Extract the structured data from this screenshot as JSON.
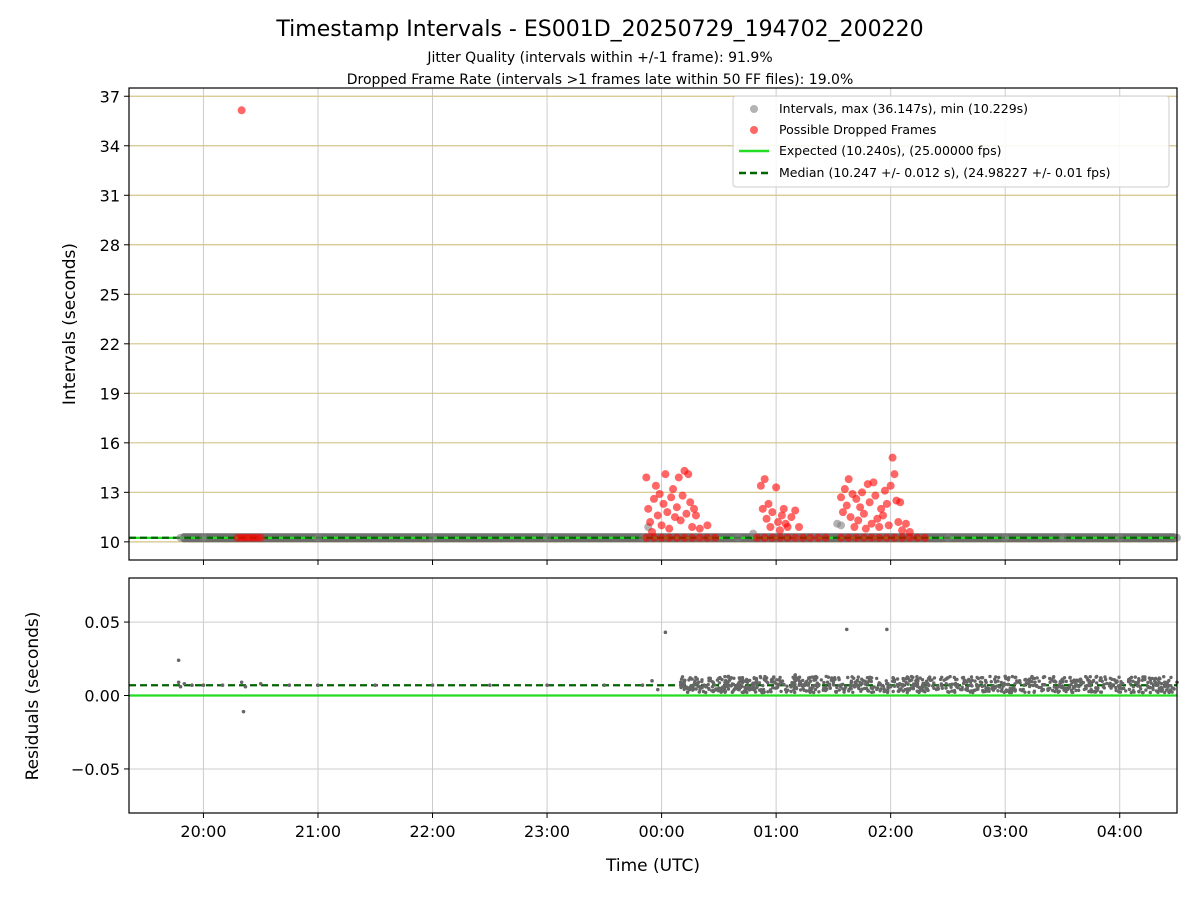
{
  "chart_data": [
    {
      "type": "scatter",
      "title": "Timestamp Intervals - ES001D_20250729_194702_200220",
      "subtitle": [
        "Jitter Quality (intervals within +/-1 frame): 91.9%",
        "Dropped Frame Rate (intervals >1 frames late within 50 FF files): 19.0%"
      ],
      "xlabel": "",
      "ylabel": "Intervals (seconds)",
      "xlim": [
        "19:21",
        "04:30"
      ],
      "ylim": [
        8.9,
        37.5
      ],
      "y_ticks": [
        10,
        13,
        16,
        19,
        22,
        25,
        28,
        31,
        34,
        37
      ],
      "grid": true,
      "legend_position": "top-right",
      "legend": [
        "Intervals, max (36.147s), min (10.229s)",
        "Possible Dropped Frames",
        "Expected (10.240s), (25.00000 fps)",
        "Median (10.247 +/- 0.012 s), (24.98227 +/- 0.01 fps)"
      ],
      "expected_value": 10.24,
      "median_value": 10.247,
      "series": [
        {
          "name": "Intervals, max (36.147s), min (10.229s)",
          "color": "#808080",
          "points": [
            [
              "19:48",
              10.25
            ],
            [
              "20:00",
              10.25
            ],
            [
              "20:30",
              10.25
            ],
            [
              "21:00",
              10.25
            ],
            [
              "22:00",
              10.25
            ],
            [
              "23:00",
              10.25
            ],
            [
              "23:50",
              10.25
            ],
            [
              "23:53",
              10.9
            ],
            [
              "00:20",
              10.25
            ],
            [
              "00:40",
              10.25
            ],
            [
              "00:48",
              10.5
            ],
            [
              "01:10",
              10.25
            ],
            [
              "01:20",
              10.25
            ],
            [
              "01:32",
              11.1
            ],
            [
              "01:34",
              11.0
            ],
            [
              "02:10",
              10.25
            ],
            [
              "02:30",
              10.25
            ],
            [
              "03:00",
              10.25
            ],
            [
              "03:30",
              10.25
            ],
            [
              "04:00",
              10.25
            ],
            [
              "04:30",
              10.25
            ]
          ]
        },
        {
          "name": "Possible Dropped Frames",
          "color": "#ff0000",
          "points": [
            [
              "20:20",
              36.15
            ],
            [
              "20:18",
              10.25
            ],
            [
              "20:20",
              10.25
            ],
            [
              "20:22",
              10.25
            ],
            [
              "20:24",
              10.25
            ],
            [
              "20:26",
              10.25
            ],
            [
              "20:28",
              10.25
            ],
            [
              "20:30",
              10.25
            ],
            [
              "23:52",
              13.9
            ],
            [
              "23:53",
              12.0
            ],
            [
              "23:54",
              11.2
            ],
            [
              "23:55",
              10.6
            ],
            [
              "23:56",
              12.6
            ],
            [
              "23:57",
              13.4
            ],
            [
              "23:58",
              11.6
            ],
            [
              "23:59",
              12.9
            ],
            [
              "00:00",
              11.0
            ],
            [
              "00:01",
              12.3
            ],
            [
              "00:02",
              14.1
            ],
            [
              "00:03",
              11.8
            ],
            [
              "00:04",
              10.8
            ],
            [
              "00:05",
              12.7
            ],
            [
              "00:06",
              13.2
            ],
            [
              "00:07",
              11.5
            ],
            [
              "00:08",
              12.1
            ],
            [
              "00:09",
              13.9
            ],
            [
              "00:10",
              11.3
            ],
            [
              "00:11",
              12.8
            ],
            [
              "00:12",
              14.3
            ],
            [
              "00:13",
              11.7
            ],
            [
              "00:14",
              14.1
            ],
            [
              "00:15",
              12.4
            ],
            [
              "00:16",
              10.9
            ],
            [
              "00:17",
              12.0
            ],
            [
              "00:18",
              11.6
            ],
            [
              "00:20",
              10.8
            ],
            [
              "00:24",
              11.0
            ],
            [
              "23:52",
              10.25
            ],
            [
              "23:56",
              10.25
            ],
            [
              "00:00",
              10.25
            ],
            [
              "00:04",
              10.25
            ],
            [
              "00:08",
              10.25
            ],
            [
              "00:12",
              10.25
            ],
            [
              "00:16",
              10.25
            ],
            [
              "00:20",
              10.25
            ],
            [
              "00:24",
              10.25
            ],
            [
              "00:28",
              10.25
            ],
            [
              "00:52",
              13.4
            ],
            [
              "00:53",
              12.0
            ],
            [
              "00:54",
              13.8
            ],
            [
              "00:55",
              11.4
            ],
            [
              "00:56",
              12.3
            ],
            [
              "00:57",
              10.9
            ],
            [
              "00:58",
              11.8
            ],
            [
              "01:00",
              13.3
            ],
            [
              "01:01",
              11.2
            ],
            [
              "01:02",
              10.7
            ],
            [
              "01:03",
              11.6
            ],
            [
              "01:04",
              12.0
            ],
            [
              "01:05",
              11.1
            ],
            [
              "01:06",
              10.9
            ],
            [
              "01:08",
              11.5
            ],
            [
              "01:10",
              11.9
            ],
            [
              "01:12",
              10.9
            ],
            [
              "00:50",
              10.25
            ],
            [
              "00:54",
              10.25
            ],
            [
              "00:58",
              10.25
            ],
            [
              "01:02",
              10.25
            ],
            [
              "01:06",
              10.25
            ],
            [
              "01:10",
              10.25
            ],
            [
              "01:14",
              10.25
            ],
            [
              "01:18",
              10.25
            ],
            [
              "01:22",
              10.25
            ],
            [
              "01:26",
              10.25
            ],
            [
              "01:34",
              12.7
            ],
            [
              "01:35",
              11.8
            ],
            [
              "01:36",
              13.2
            ],
            [
              "01:37",
              12.2
            ],
            [
              "01:38",
              13.8
            ],
            [
              "01:39",
              11.5
            ],
            [
              "01:40",
              12.9
            ],
            [
              "01:41",
              10.9
            ],
            [
              "01:42",
              12.6
            ],
            [
              "01:43",
              11.3
            ],
            [
              "01:44",
              12.1
            ],
            [
              "01:45",
              13.0
            ],
            [
              "01:46",
              11.7
            ],
            [
              "01:47",
              10.8
            ],
            [
              "01:48",
              13.5
            ],
            [
              "01:49",
              12.4
            ],
            [
              "01:50",
              11.1
            ],
            [
              "01:51",
              13.6
            ],
            [
              "01:52",
              12.8
            ],
            [
              "01:53",
              11.4
            ],
            [
              "01:54",
              10.9
            ],
            [
              "01:55",
              12.0
            ],
            [
              "01:56",
              11.6
            ],
            [
              "01:57",
              13.1
            ],
            [
              "01:58",
              12.3
            ],
            [
              "01:59",
              11.0
            ],
            [
              "02:00",
              13.4
            ],
            [
              "02:01",
              15.1
            ],
            [
              "02:02",
              14.1
            ],
            [
              "02:03",
              12.5
            ],
            [
              "02:04",
              11.2
            ],
            [
              "02:05",
              12.4
            ],
            [
              "02:06",
              10.7
            ],
            [
              "02:08",
              11.1
            ],
            [
              "02:10",
              10.6
            ],
            [
              "01:34",
              10.25
            ],
            [
              "01:38",
              10.25
            ],
            [
              "01:42",
              10.25
            ],
            [
              "01:46",
              10.25
            ],
            [
              "01:50",
              10.25
            ],
            [
              "01:54",
              10.25
            ],
            [
              "01:58",
              10.25
            ],
            [
              "02:02",
              10.25
            ],
            [
              "02:06",
              10.25
            ],
            [
              "02:10",
              10.25
            ],
            [
              "02:14",
              10.25
            ],
            [
              "02:18",
              10.25
            ]
          ]
        }
      ]
    },
    {
      "type": "scatter",
      "xlabel": "Time (UTC)",
      "ylabel": "Residuals (seconds)",
      "xlim": [
        "19:21",
        "04:30"
      ],
      "ylim": [
        -0.08,
        0.08
      ],
      "y_ticks": [
        -0.05,
        0.0,
        0.05
      ],
      "y_tick_labels": [
        "−0.05",
        "0.00",
        "0.05"
      ],
      "x_ticks": [
        "20:00",
        "21:00",
        "22:00",
        "23:00",
        "00:00",
        "01:00",
        "02:00",
        "03:00",
        "04:00"
      ],
      "grid": true,
      "expected_value": 0.0,
      "median_value": 0.007,
      "series": [
        {
          "name": "Residuals",
          "color": "#666666",
          "points": [
            [
              "19:47",
              0.024
            ],
            [
              "19:47",
              0.009
            ],
            [
              "19:48",
              0.006
            ],
            [
              "19:50",
              0.008
            ],
            [
              "19:54",
              0.007
            ],
            [
              "20:00",
              0.007
            ],
            [
              "20:10",
              0.007
            ],
            [
              "20:20",
              0.009
            ],
            [
              "20:21",
              -0.011
            ],
            [
              "20:22",
              0.006
            ],
            [
              "20:30",
              0.008
            ],
            [
              "20:45",
              0.007
            ],
            [
              "21:00",
              0.007
            ],
            [
              "21:30",
              0.007
            ],
            [
              "22:00",
              0.007
            ],
            [
              "22:30",
              0.007
            ],
            [
              "23:00",
              0.007
            ],
            [
              "23:30",
              0.007
            ],
            [
              "23:50",
              0.007
            ],
            [
              "23:55",
              0.01
            ],
            [
              "23:58",
              0.004
            ],
            [
              "00:02",
              0.043
            ],
            [
              "00:10",
              0.009
            ],
            [
              "00:15",
              0.012
            ],
            [
              "00:20",
              0.006
            ],
            [
              "00:25",
              0.011
            ],
            [
              "00:30",
              0.005
            ],
            [
              "00:35",
              0.013
            ],
            [
              "00:40",
              0.007
            ],
            [
              "00:45",
              0.009
            ],
            [
              "00:50",
              0.006
            ],
            [
              "00:55",
              0.012
            ],
            [
              "01:00",
              0.008
            ],
            [
              "01:05",
              0.004
            ],
            [
              "01:10",
              0.014
            ],
            [
              "01:15",
              0.007
            ],
            [
              "01:20",
              0.011
            ],
            [
              "01:25",
              0.005
            ],
            [
              "01:30",
              0.009
            ],
            [
              "01:37",
              0.045
            ],
            [
              "01:45",
              0.008
            ],
            [
              "01:50",
              0.012
            ],
            [
              "01:58",
              0.045
            ],
            [
              "02:00",
              0.006
            ],
            [
              "02:10",
              0.01
            ],
            [
              "02:20",
              0.007
            ],
            [
              "02:30",
              0.012
            ],
            [
              "02:40",
              0.005
            ],
            [
              "02:50",
              0.009
            ],
            [
              "03:00",
              0.013
            ],
            [
              "03:10",
              0.007
            ],
            [
              "03:20",
              0.004
            ],
            [
              "03:30",
              0.011
            ],
            [
              "03:40",
              0.008
            ],
            [
              "03:50",
              0.012
            ],
            [
              "04:00",
              0.006
            ],
            [
              "04:10",
              0.01
            ],
            [
              "04:20",
              0.007
            ],
            [
              "04:30",
              0.009
            ]
          ]
        }
      ]
    }
  ],
  "colors": {
    "intervals": "#808080",
    "dropped": "#ff0000",
    "expected": "#22dd22",
    "median": "#006400",
    "band": "#555555",
    "gold_grid": "#d4c48a",
    "grid": "#cccccc"
  }
}
